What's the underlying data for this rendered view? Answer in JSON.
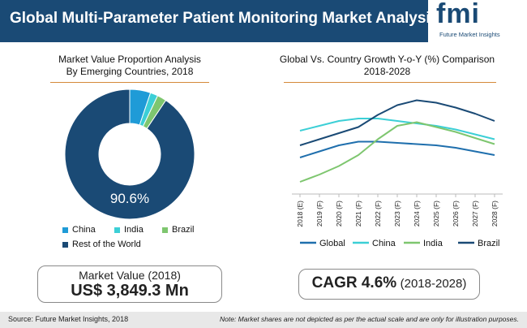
{
  "header": {
    "title": "Global Multi-Parameter Patient Monitoring Market Analysis"
  },
  "logo": {
    "wordmark": "fmi",
    "tagline": "Future Market Insights"
  },
  "colors": {
    "header_bg": "#1a4a75",
    "china": "#1f9bd7",
    "india": "#3ccfd6",
    "brazil": "#7ec66f",
    "rest": "#1a4a75"
  },
  "left_panel": {
    "title_line1": "Market Value Proportion Analysis",
    "title_line2": "By Emerging Countries, 2018",
    "donut_label": "90.6%",
    "market_value_label": "Market Value (2018)",
    "market_value": "US$ 3,849.3 Mn"
  },
  "right_panel": {
    "title_line1": "Global Vs. Country Growth Y-o-Y (%) Comparison",
    "title_line2": "2018-2028",
    "cagr_label": "CAGR 4.6%",
    "cagr_period": "(2018-2028)"
  },
  "chart_data": [
    {
      "type": "pie",
      "title": "Market Value Proportion Analysis By Emerging Countries, 2018",
      "categories": [
        "China",
        "India",
        "Brazil",
        "Rest of the World"
      ],
      "values": [
        5.2,
        1.9,
        2.3,
        90.6
      ],
      "colors": [
        "#1f9bd7",
        "#3ccfd6",
        "#7ec66f",
        "#1a4a75"
      ],
      "data_labels": [
        "",
        "",
        "",
        "90.6%"
      ],
      "legend": "bottom"
    },
    {
      "type": "line",
      "title": "Global Vs. Country Growth Y-o-Y (%) Comparison 2018-2028",
      "x": [
        "2018 (E)",
        "2019 (F)",
        "2020 (F)",
        "2021 (F)",
        "2022 (F)",
        "2023 (F)",
        "2024 (F)",
        "2025 (F)",
        "2026 (F)",
        "2027 (F)",
        "2028 (F)"
      ],
      "series": [
        {
          "name": "Global",
          "color": "#1f6fad",
          "values": [
            4.0,
            4.5,
            5.0,
            5.3,
            5.3,
            5.2,
            5.1,
            5.0,
            4.8,
            4.5,
            4.2
          ]
        },
        {
          "name": "China",
          "color": "#3ccfd6",
          "values": [
            6.2,
            6.6,
            7.0,
            7.2,
            7.2,
            7.0,
            6.8,
            6.6,
            6.3,
            5.9,
            5.5
          ]
        },
        {
          "name": "India",
          "color": "#7ec66f",
          "values": [
            2.0,
            2.6,
            3.3,
            4.2,
            5.5,
            6.6,
            6.9,
            6.5,
            6.1,
            5.6,
            5.1
          ]
        },
        {
          "name": "Brazil",
          "color": "#1a4a75",
          "values": [
            5.0,
            5.5,
            6.0,
            6.5,
            7.5,
            8.3,
            8.7,
            8.5,
            8.1,
            7.6,
            7.0
          ]
        }
      ],
      "ylim": [
        1,
        10
      ],
      "legend": "bottom",
      "grid": false
    }
  ],
  "footer": {
    "source": "Source: Future Market Insights, 2018",
    "note": "Note: Market shares are not depicted as per the actual scale and are only for illustration purposes."
  }
}
